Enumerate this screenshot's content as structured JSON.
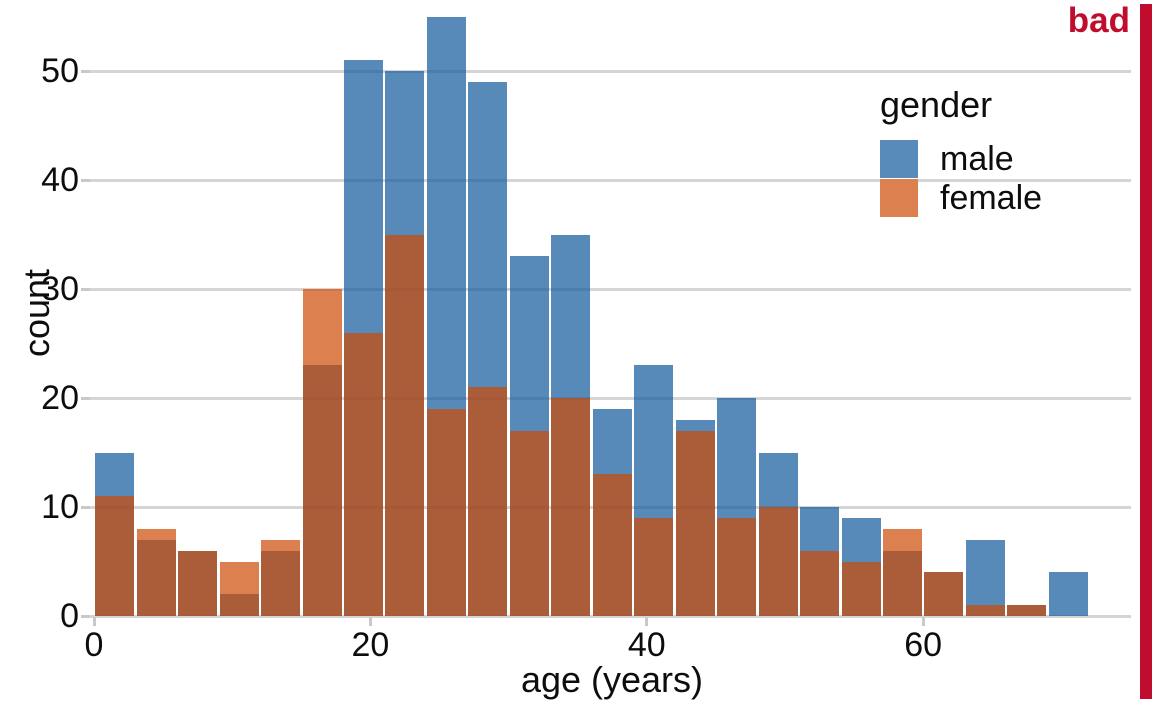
{
  "annotation": {
    "label": "bad"
  },
  "colors": {
    "male_fill": "rgba(16,89,155,0.7)",
    "female_fill": "rgba(206,74,4,0.7)",
    "male_legend": "#588bb9",
    "female_legend": "#dd804f",
    "overlap": "#ab5d3a",
    "annotation_red": "#c00c2d",
    "gridline": "#d5d5d5",
    "tick": "#c9c9c9",
    "text": "#0d0d0d"
  },
  "chart_data": {
    "type": "histogram",
    "variant": "overlapping-semitransparent",
    "title": "",
    "xlabel": "age (years)",
    "ylabel": "count",
    "legend_title": "gender",
    "legend_position": "upper-right",
    "grid": "horizontal",
    "bin_width": 3,
    "bin_starts": [
      0,
      3,
      6,
      9,
      12,
      15,
      18,
      21,
      24,
      27,
      30,
      33,
      36,
      39,
      42,
      45,
      48,
      51,
      54,
      57,
      60,
      63,
      66,
      69
    ],
    "series": [
      {
        "name": "male",
        "values": [
          15,
          7,
          6,
          2,
          6,
          23,
          51,
          50,
          55,
          49,
          33,
          35,
          19,
          23,
          18,
          20,
          15,
          10,
          9,
          6,
          4,
          7,
          1,
          4
        ]
      },
      {
        "name": "female",
        "values": [
          11,
          8,
          6,
          5,
          7,
          30,
          26,
          35,
          19,
          21,
          17,
          20,
          13,
          9,
          17,
          9,
          10,
          6,
          5,
          8,
          4,
          1,
          1,
          0
        ]
      }
    ],
    "x_ticks": [
      0,
      20,
      40,
      60
    ],
    "y_ticks": [
      0,
      10,
      20,
      30,
      40,
      50
    ],
    "xlim": [
      0,
      72
    ],
    "ylim": [
      0,
      56
    ]
  }
}
